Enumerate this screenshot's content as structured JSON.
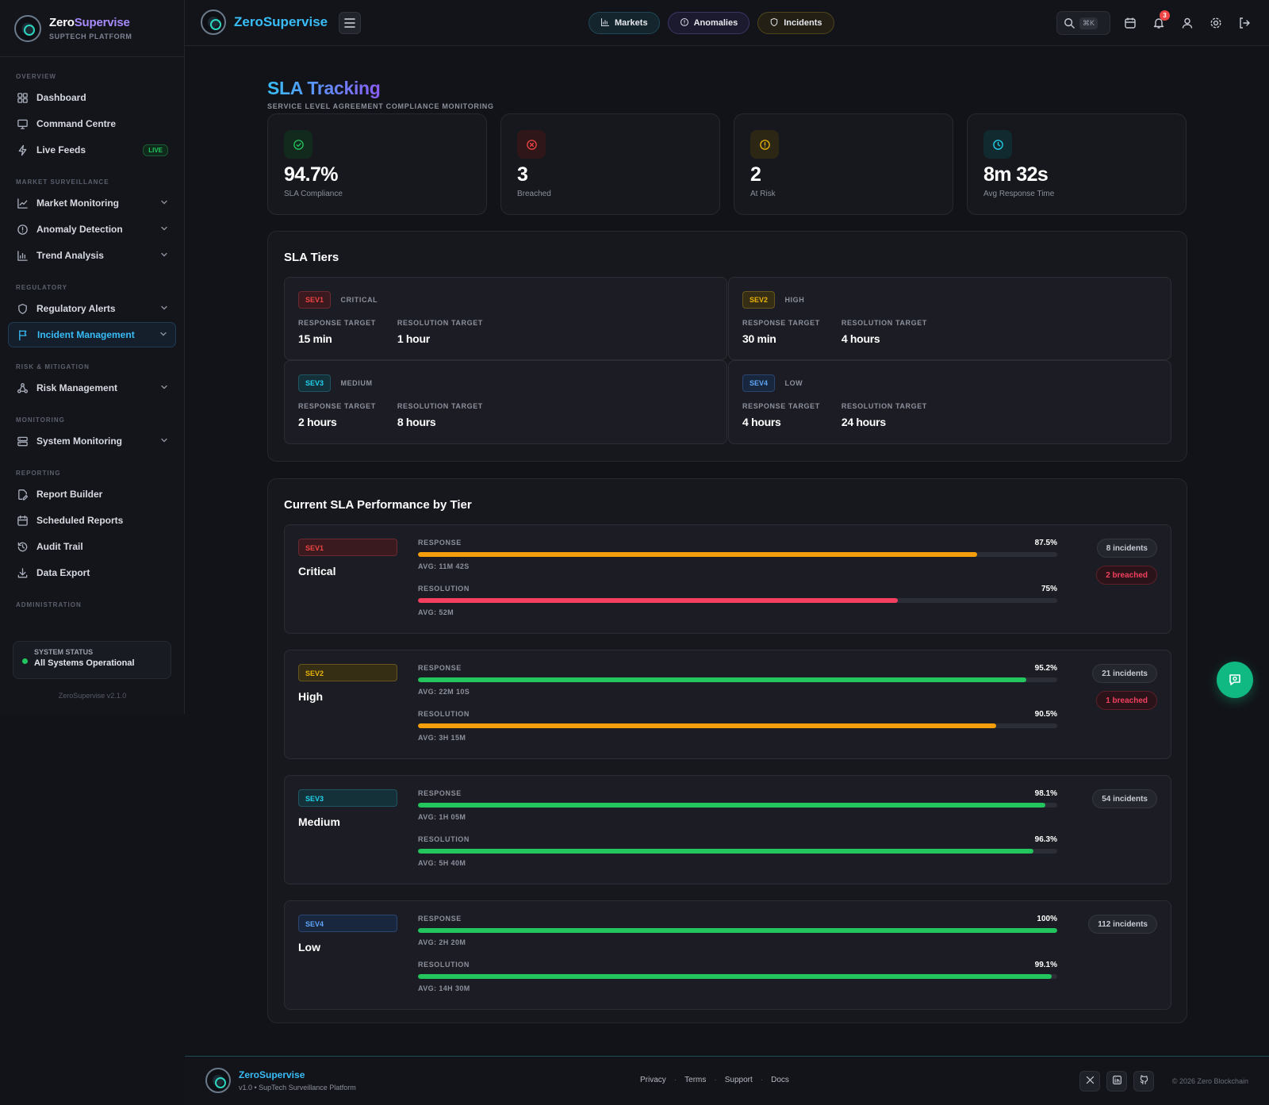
{
  "app": {
    "brand_name_a": "Zero",
    "brand_name_b": "Supervise",
    "brand_sub": "SupTech Platform",
    "top_brand_name": "ZeroSupervise",
    "version": "ZeroSupervise v2.1.0"
  },
  "sidebar": {
    "sections": [
      {
        "label": "Overview",
        "items": [
          {
            "label": "Dashboard",
            "icon": "grid-icon"
          },
          {
            "label": "Command Centre",
            "icon": "monitor-icon"
          },
          {
            "label": "Live Feeds",
            "icon": "bolt-icon",
            "badge": "LIVE"
          }
        ]
      },
      {
        "label": "Market Surveillance",
        "items": [
          {
            "label": "Market Monitoring",
            "icon": "line-chart-icon"
          },
          {
            "label": "Anomaly Detection",
            "icon": "alert-circle-icon"
          },
          {
            "label": "Trend Analysis",
            "icon": "bar-chart-icon"
          }
        ]
      },
      {
        "label": "Regulatory",
        "items": [
          {
            "label": "Regulatory Alerts",
            "icon": "shield-icon"
          },
          {
            "label": "Incident Management",
            "icon": "flag-icon",
            "active": true
          }
        ]
      },
      {
        "label": "Risk & Mitigation",
        "items": [
          {
            "label": "Risk Management",
            "icon": "network-icon"
          }
        ]
      },
      {
        "label": "Monitoring",
        "items": [
          {
            "label": "System Monitoring",
            "icon": "server-icon"
          }
        ]
      },
      {
        "label": "Reporting",
        "items": [
          {
            "label": "Report Builder",
            "icon": "file-edit-icon"
          },
          {
            "label": "Scheduled Reports",
            "icon": "calendar-icon"
          },
          {
            "label": "Audit Trail",
            "icon": "history-icon"
          },
          {
            "label": "Data Export",
            "icon": "download-icon"
          }
        ]
      },
      {
        "label": "Administration",
        "items": []
      }
    ],
    "system_status_label": "System Status",
    "system_status_value": "All Systems Operational"
  },
  "topbar": {
    "pills": [
      {
        "label": "Markets",
        "icon": "bar-chart-icon"
      },
      {
        "label": "Anomalies",
        "icon": "alert-circle-icon"
      },
      {
        "label": "Incidents",
        "icon": "shield-icon"
      }
    ],
    "search_shortcut": "⌘K",
    "notification_count": "3"
  },
  "page": {
    "title": "SLA Tracking",
    "subtitle": "Service Level Agreement Compliance Monitoring"
  },
  "stats": [
    {
      "value": "94.7%",
      "label": "SLA Compliance",
      "icon": "check-circle-icon",
      "color": "#22c55e",
      "bg": "#12291d"
    },
    {
      "value": "3",
      "label": "Breached",
      "icon": "x-circle-icon",
      "color": "#ef4444",
      "bg": "#2e1619"
    },
    {
      "value": "2",
      "label": "At Risk",
      "icon": "alert-circle-icon",
      "color": "#eab308",
      "bg": "#2c2614"
    },
    {
      "value": "8m 32s",
      "label": "Avg Response Time",
      "icon": "clock-icon",
      "color": "#22d3ee",
      "bg": "#112a30"
    }
  ],
  "tiers": {
    "title": "SLA Tiers",
    "response_label": "Response Target",
    "resolution_label": "Resolution Target",
    "items": [
      {
        "sev": "SEV1",
        "name": "Critical",
        "response": "15 min",
        "resolution": "1 hour",
        "color": "#ef4444",
        "bg": "#3a1a1e",
        "border": "#6a2a31"
      },
      {
        "sev": "SEV2",
        "name": "High",
        "response": "30 min",
        "resolution": "4 hours",
        "color": "#eab308",
        "bg": "#362e14",
        "border": "#66561e"
      },
      {
        "sev": "SEV3",
        "name": "Medium",
        "response": "2 hours",
        "resolution": "8 hours",
        "color": "#22d3ee",
        "bg": "#143039",
        "border": "#1f5563"
      },
      {
        "sev": "SEV4",
        "name": "Low",
        "response": "4 hours",
        "resolution": "24 hours",
        "color": "#60a5fa",
        "bg": "#18263e",
        "border": "#2a4570"
      }
    ]
  },
  "performance": {
    "title": "Current SLA Performance by Tier",
    "response_label": "Response",
    "resolution_label": "Resolution",
    "rows": [
      {
        "sev": "SEV1",
        "name": "Critical",
        "response_pct": "87.5%",
        "response_val": 87.5,
        "response_color": "#f59e0b",
        "response_avg": "AVG: 11M 42S",
        "resolution_pct": "75%",
        "resolution_val": 75,
        "resolution_color": "#f43f5e",
        "resolution_avg": "AVG: 52M",
        "incidents": "8 incidents",
        "breached": "2 breached"
      },
      {
        "sev": "SEV2",
        "name": "High",
        "response_pct": "95.2%",
        "response_val": 95.2,
        "response_color": "#22c55e",
        "response_avg": "AVG: 22M 10S",
        "resolution_pct": "90.5%",
        "resolution_val": 90.5,
        "resolution_color": "#f59e0b",
        "resolution_avg": "AVG: 3H 15M",
        "incidents": "21 incidents",
        "breached": "1 breached"
      },
      {
        "sev": "SEV3",
        "name": "Medium",
        "response_pct": "98.1%",
        "response_val": 98.1,
        "response_color": "#22c55e",
        "response_avg": "AVG: 1H 05M",
        "resolution_pct": "96.3%",
        "resolution_val": 96.3,
        "resolution_color": "#22c55e",
        "resolution_avg": "AVG: 5H 40M",
        "incidents": "54 incidents",
        "breached": ""
      },
      {
        "sev": "SEV4",
        "name": "Low",
        "response_pct": "100%",
        "response_val": 100,
        "response_color": "#22c55e",
        "response_avg": "AVG: 2H 20M",
        "resolution_pct": "99.1%",
        "resolution_val": 99.1,
        "resolution_color": "#22c55e",
        "resolution_avg": "AVG: 14H 30M",
        "incidents": "112 incidents",
        "breached": ""
      }
    ]
  },
  "footer": {
    "name": "ZeroSupervise",
    "sub": "v1.0 • SupTech Surveillance Platform",
    "links": [
      "Privacy",
      "Terms",
      "Support",
      "Docs"
    ],
    "social": [
      {
        "label": "X",
        "icon": "x-icon"
      },
      {
        "label": "in",
        "icon": "linkedin-icon"
      },
      {
        "label": "",
        "icon": "github-icon"
      }
    ],
    "copyright": "© 2026 Zero Blockchain"
  }
}
